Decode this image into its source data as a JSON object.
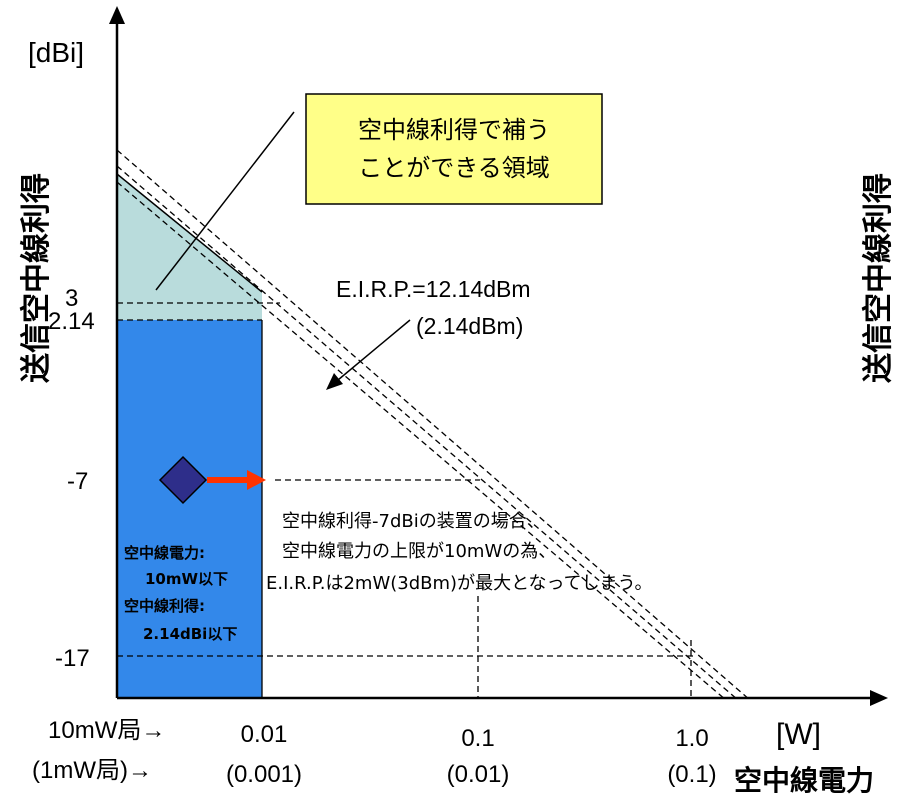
{
  "y_axis": {
    "unit": "[dBi]",
    "title": "送信空中線利得",
    "ticks": [
      "3",
      "2.14",
      "-7",
      "-17"
    ]
  },
  "x_axis": {
    "unit": "[W]",
    "title": "空中線電力",
    "row1_prefix": "10mW局→",
    "row2_prefix": "(1mW局)→",
    "ticks_row1": [
      "0.01",
      "0.1",
      "1.0"
    ],
    "ticks_row2": [
      "(0.001)",
      "(0.01)",
      "(0.1)"
    ]
  },
  "callout": {
    "line1": "空中線利得で補う",
    "line2": "ことができる領域"
  },
  "eirp_label": {
    "line1": "E.I.R.P.=12.14dBm",
    "line2": "(2.14dBm)"
  },
  "note": {
    "line1": "空中線利得-7dBiの装置の場合、",
    "line2": "空中線電力の上限が10mWの為、",
    "line3": "E.I.R.P.は2mW(3dBm)が最大となってしまう。"
  },
  "region_label": {
    "line1": "空中線電力:",
    "line2": "10mW以下",
    "line3": "空中線利得:",
    "line4": "2.14dBi以下"
  },
  "right_clipped_title": "送信空中線利得",
  "colors": {
    "region_blue": "#3388ea",
    "region_teal": "#b9dcdc",
    "callout_fill": "#ffff88",
    "marker": "#2e2e8a",
    "arrow": "#ff3300"
  }
}
